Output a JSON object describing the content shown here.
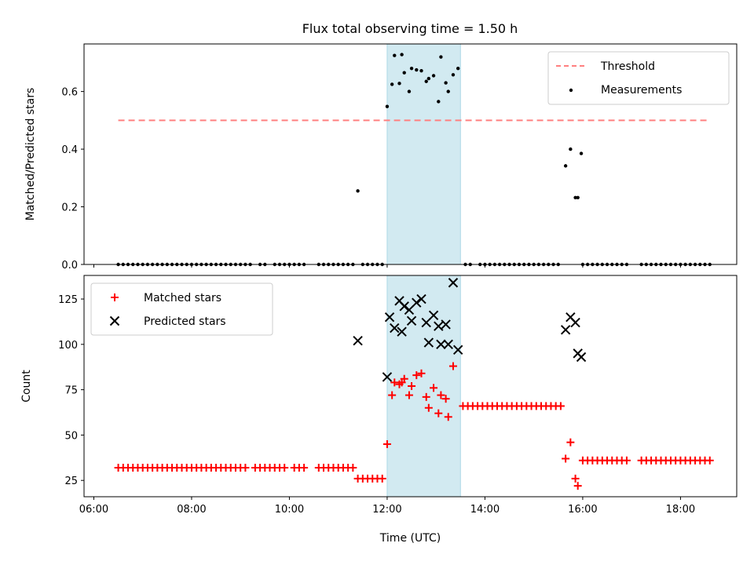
{
  "chart_data": {
    "title": "Flux total observing time = 1.50 h",
    "xlabel": "Time (UTC)",
    "x_unit": "hours UTC",
    "xlim": [
      5.8,
      19.15
    ],
    "xticks": [
      {
        "v": 6,
        "label": "06:00"
      },
      {
        "v": 8,
        "label": "08:00"
      },
      {
        "v": 10,
        "label": "10:00"
      },
      {
        "v": 12,
        "label": "12:00"
      },
      {
        "v": 14,
        "label": "14:00"
      },
      {
        "v": 16,
        "label": "16:00"
      },
      {
        "v": 18,
        "label": "18:00"
      }
    ],
    "shaded_x_range": [
      12.0,
      13.5
    ],
    "shade_color": "#add8e6",
    "panels": [
      {
        "type": "scatter",
        "ylabel": "Matched/Predicted stars",
        "ylim": [
          0,
          0.765
        ],
        "yticks": [
          {
            "v": 0,
            "label": "0.0"
          },
          {
            "v": 0.2,
            "label": "0.2"
          },
          {
            "v": 0.4,
            "label": "0.4"
          },
          {
            "v": 0.6,
            "label": "0.6"
          }
        ],
        "legend_position": "top-right",
        "threshold": {
          "name": "Threshold",
          "y": 0.5,
          "x_range": [
            6.5,
            18.6
          ],
          "color": "#ff8080"
        },
        "measurements": {
          "name": "Measurements",
          "color": "#000000",
          "x_zero": [
            6.5,
            6.6,
            6.7,
            6.8,
            6.9,
            7.0,
            7.1,
            7.2,
            7.3,
            7.4,
            7.5,
            7.6,
            7.7,
            7.8,
            7.9,
            8.0,
            8.1,
            8.2,
            8.3,
            8.4,
            8.5,
            8.6,
            8.7,
            8.8,
            8.9,
            9.0,
            9.1,
            9.2,
            9.4,
            9.5,
            9.7,
            9.8,
            9.9,
            10.0,
            10.1,
            10.2,
            10.3,
            10.6,
            10.7,
            10.8,
            10.9,
            11.0,
            11.1,
            11.2,
            11.3,
            11.5,
            11.6,
            11.7,
            11.8,
            11.9,
            13.6,
            13.7,
            13.9,
            14.0,
            14.1,
            14.2,
            14.3,
            14.4,
            14.5,
            14.6,
            14.7,
            14.8,
            14.9,
            15.0,
            15.1,
            15.2,
            15.3,
            15.4,
            15.5,
            16.0,
            16.1,
            16.2,
            16.3,
            16.4,
            16.5,
            16.6,
            16.7,
            16.8,
            16.9,
            17.2,
            17.3,
            17.4,
            17.5,
            17.6,
            17.7,
            17.8,
            17.9,
            18.0,
            18.1,
            18.2,
            18.3,
            18.4,
            18.5,
            18.6
          ],
          "points": [
            [
              11.4,
              0.255
            ],
            [
              12.0,
              0.548
            ],
            [
              12.1,
              0.625
            ],
            [
              12.15,
              0.725
            ],
            [
              12.25,
              0.628
            ],
            [
              12.3,
              0.728
            ],
            [
              12.35,
              0.665
            ],
            [
              12.45,
              0.6
            ],
            [
              12.5,
              0.68
            ],
            [
              12.6,
              0.675
            ],
            [
              12.7,
              0.672
            ],
            [
              12.8,
              0.635
            ],
            [
              12.85,
              0.645
            ],
            [
              12.95,
              0.655
            ],
            [
              13.05,
              0.565
            ],
            [
              13.1,
              0.72
            ],
            [
              13.2,
              0.63
            ],
            [
              13.25,
              0.6
            ],
            [
              13.35,
              0.658
            ],
            [
              13.45,
              0.68
            ],
            [
              15.65,
              0.342
            ],
            [
              15.75,
              0.4
            ],
            [
              15.85,
              0.232
            ],
            [
              15.9,
              0.232
            ],
            [
              15.97,
              0.385
            ]
          ]
        }
      },
      {
        "type": "scatter",
        "ylabel": "Count",
        "ylim": [
          16,
          138
        ],
        "yticks": [
          {
            "v": 25,
            "label": "25"
          },
          {
            "v": 50,
            "label": "50"
          },
          {
            "v": 75,
            "label": "75"
          },
          {
            "v": 100,
            "label": "100"
          },
          {
            "v": 125,
            "label": "125"
          }
        ],
        "legend_position": "top-left",
        "series": [
          {
            "name": "Matched stars",
            "marker": "+",
            "color": "#ff0000",
            "runs": [
              {
                "x_start": 6.5,
                "x_end": 9.1,
                "step": 0.1,
                "y": 32
              },
              {
                "x_start": 9.3,
                "x_end": 9.9,
                "step": 0.1,
                "y": 32
              },
              {
                "x_start": 10.1,
                "x_end": 10.3,
                "step": 0.1,
                "y": 32
              },
              {
                "x_start": 10.6,
                "x_end": 11.3,
                "step": 0.1,
                "y": 32
              },
              {
                "x_start": 11.4,
                "x_end": 11.9,
                "step": 0.1,
                "y": 26
              },
              {
                "x_start": 13.55,
                "x_end": 15.55,
                "step": 0.1,
                "y": 66
              },
              {
                "x_start": 16.0,
                "x_end": 16.9,
                "step": 0.1,
                "y": 36
              },
              {
                "x_start": 17.2,
                "x_end": 18.6,
                "step": 0.1,
                "y": 36
              }
            ],
            "points": [
              [
                12.0,
                45
              ],
              [
                12.1,
                72
              ],
              [
                12.15,
                79
              ],
              [
                12.25,
                78
              ],
              [
                12.3,
                79
              ],
              [
                12.35,
                81
              ],
              [
                12.45,
                72
              ],
              [
                12.5,
                77
              ],
              [
                12.6,
                83
              ],
              [
                12.7,
                84
              ],
              [
                12.8,
                71
              ],
              [
                12.85,
                65
              ],
              [
                12.95,
                76
              ],
              [
                13.05,
                62
              ],
              [
                13.1,
                72
              ],
              [
                13.2,
                70
              ],
              [
                13.25,
                60
              ],
              [
                13.35,
                88
              ],
              [
                15.65,
                37
              ],
              [
                15.75,
                46
              ],
              [
                15.85,
                26
              ],
              [
                15.9,
                22
              ]
            ]
          },
          {
            "name": "Predicted stars",
            "marker": "x",
            "color": "#000000",
            "points": [
              [
                11.4,
                102
              ],
              [
                12.0,
                82
              ],
              [
                12.05,
                115
              ],
              [
                12.15,
                109
              ],
              [
                12.25,
                124
              ],
              [
                12.3,
                107
              ],
              [
                12.35,
                121
              ],
              [
                12.45,
                119
              ],
              [
                12.5,
                113
              ],
              [
                12.6,
                123
              ],
              [
                12.7,
                125
              ],
              [
                12.8,
                112
              ],
              [
                12.85,
                101
              ],
              [
                12.95,
                116
              ],
              [
                13.05,
                110
              ],
              [
                13.1,
                100
              ],
              [
                13.2,
                111
              ],
              [
                13.25,
                100
              ],
              [
                13.35,
                134
              ],
              [
                13.45,
                97
              ],
              [
                15.65,
                108
              ],
              [
                15.75,
                115
              ],
              [
                15.85,
                112
              ],
              [
                15.9,
                95
              ],
              [
                15.97,
                93
              ]
            ]
          }
        ]
      }
    ]
  }
}
